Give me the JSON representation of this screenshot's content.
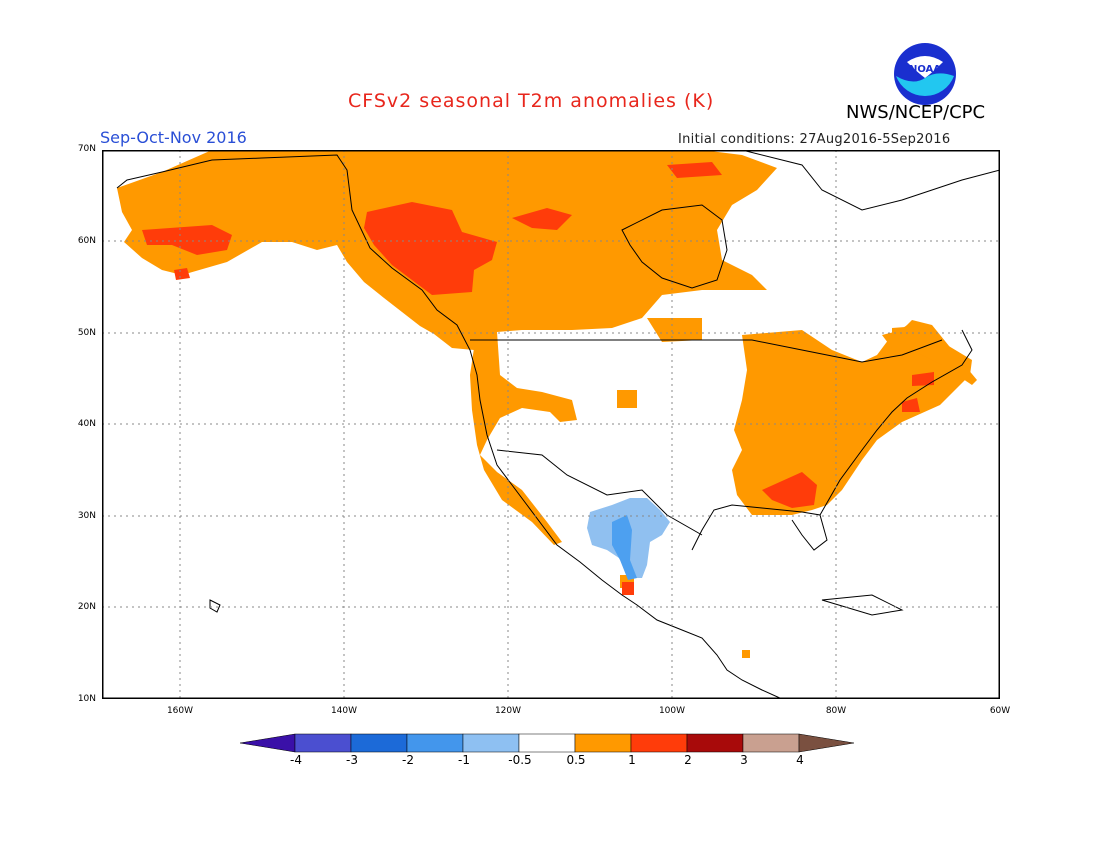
{
  "header": {
    "title": "CFSv2 seasonal T2m anomalies (K)",
    "organization": "NWS/NCEP/CPC",
    "season": "Sep-Oct-Nov 2016",
    "initial_conditions": "Initial conditions: 27Aug2016-5Sep2016",
    "logo_text": "NOAA"
  },
  "map": {
    "lat_labels": [
      "70N",
      "60N",
      "50N",
      "40N",
      "30N",
      "20N",
      "10N"
    ],
    "lon_labels": [
      "160W",
      "140W",
      "120W",
      "100W",
      "80W",
      "60W"
    ],
    "colors": {
      "ocean": "#ffffff",
      "anom_0_5_to_1": "#ff9900",
      "anom_1_to_2": "#ff3c0a",
      "anom_neg_1_to_neg_0_5": "#90c0f0",
      "anom_neg_2_to_neg_1": "#4da0f0"
    }
  },
  "colorbar": {
    "labels": [
      "-4",
      "-3",
      "-2",
      "-1",
      "-0.5",
      "0.5",
      "1",
      "2",
      "3",
      "4"
    ],
    "colors": [
      "#3a10a8",
      "#4b4fd0",
      "#1c6ad8",
      "#4396ec",
      "#8ec0f2",
      "#ffffff",
      "#ff9900",
      "#ff3c0a",
      "#a80a0a",
      "#c9a090",
      "#7a5040"
    ]
  }
}
